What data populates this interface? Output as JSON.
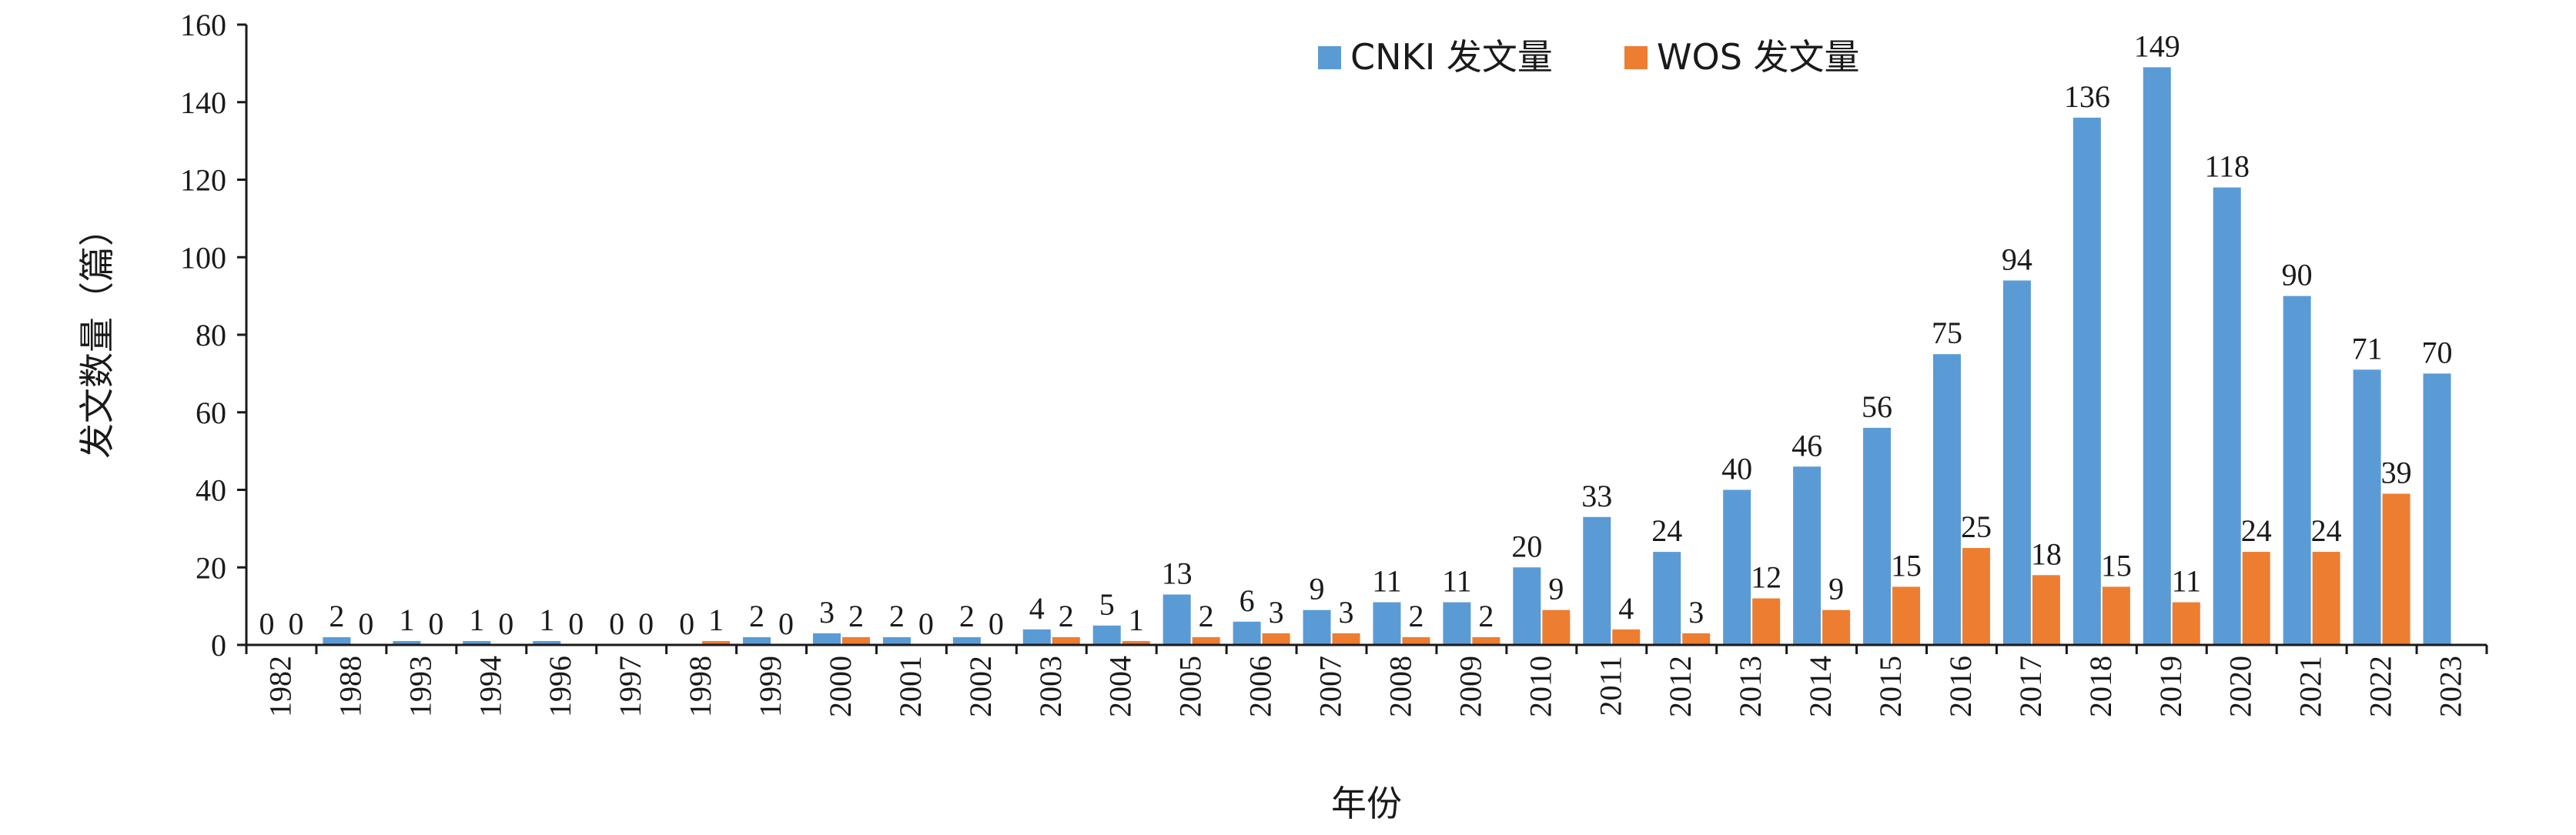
{
  "chart_data": {
    "type": "bar",
    "categories": [
      "1982",
      "1988",
      "1993",
      "1994",
      "1996",
      "1997",
      "1998",
      "1999",
      "2000",
      "2001",
      "2002",
      "2003",
      "2004",
      "2005",
      "2006",
      "2007",
      "2008",
      "2009",
      "2010",
      "2011",
      "2012",
      "2013",
      "2014",
      "2015",
      "2016",
      "2017",
      "2018",
      "2019",
      "2020",
      "2021",
      "2022",
      "2023"
    ],
    "series": [
      {
        "name": "CNKI 发文量",
        "color": "#5b9bd5",
        "values": [
          0,
          2,
          1,
          1,
          1,
          0,
          0,
          2,
          3,
          2,
          2,
          4,
          5,
          13,
          6,
          9,
          11,
          11,
          20,
          33,
          24,
          40,
          46,
          56,
          75,
          94,
          136,
          149,
          118,
          90,
          71,
          70
        ]
      },
      {
        "name": "WOS 发文量",
        "color": "#ed7d31",
        "values": [
          0,
          0,
          0,
          0,
          0,
          0,
          1,
          0,
          2,
          0,
          0,
          2,
          1,
          2,
          3,
          3,
          2,
          2,
          9,
          4,
          3,
          12,
          9,
          15,
          25,
          18,
          15,
          11,
          24,
          24,
          39,
          null
        ]
      }
    ],
    "xlabel": "年份",
    "ylabel": "发文数量（篇）",
    "ylim": [
      0,
      160
    ],
    "yticks": [
      0,
      20,
      40,
      60,
      80,
      100,
      120,
      140,
      160
    ],
    "grid": false,
    "legend_position": "top-center",
    "data_labels": true
  }
}
